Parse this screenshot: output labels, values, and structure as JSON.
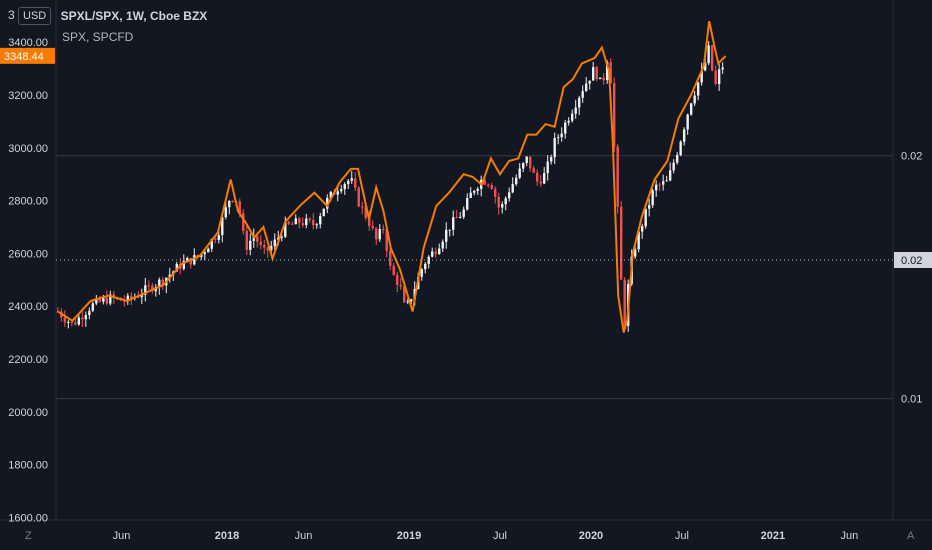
{
  "header": {
    "scale_prefix": "3",
    "currency_button": "USD",
    "symbol_title": "SPXL/SPX, 1W, Cboe BZX",
    "comparison_label": "SPX, SPCFD"
  },
  "corner": {
    "left": "Z",
    "right": "A"
  },
  "colors": {
    "background": "#131722",
    "grid": "#1f2330",
    "axis_text": "#d1d4dc",
    "up_candle": "#f0f0f0",
    "down_candle": "#ef5350",
    "compare_line": "#f57c00",
    "price_label_bg": "#f57c00"
  },
  "chart_data": {
    "type": "line",
    "title": "SPXL/SPX, 1W, Cboe BZX",
    "left_axis": {
      "ticks": [
        "1600.00",
        "1800.00",
        "2000.00",
        "2200.00",
        "2400.00",
        "2600.00",
        "2800.00",
        "3000.00",
        "3200.00",
        "3400.00"
      ],
      "ylim": [
        1590,
        3560
      ],
      "last_price_label": "3348.44"
    },
    "right_axis": {
      "ticks": [
        "0.01",
        "0.02"
      ],
      "last_value_label": "0.02"
    },
    "x_axis": {
      "ticks": [
        "Jun",
        "2018",
        "Jun",
        "2019",
        "Jul",
        "2020",
        "Jul",
        "2021",
        "Jun"
      ],
      "tick_dates": [
        2017.42,
        2018.0,
        2018.42,
        2019.0,
        2019.5,
        2020.0,
        2020.5,
        2021.0,
        2021.42
      ],
      "xlim": [
        2017.06,
        2021.66
      ]
    },
    "series": [
      {
        "style": "candlestick-trend",
        "x": [
          2017.07,
          2017.15,
          2017.25,
          2017.35,
          2017.45,
          2017.55,
          2017.65,
          2017.75,
          2017.85,
          2017.95,
          2018.02,
          2018.06,
          2018.1,
          2018.15,
          2018.2,
          2018.25,
          2018.32,
          2018.4,
          2018.48,
          2018.55,
          2018.62,
          2018.68,
          2018.72,
          2018.78,
          2018.82,
          2018.86,
          2018.9,
          2018.95,
          2018.98,
          2019.02,
          2019.08,
          2019.15,
          2019.22,
          2019.3,
          2019.35,
          2019.4,
          2019.45,
          2019.5,
          2019.55,
          2019.6,
          2019.65,
          2019.7,
          2019.75,
          2019.8,
          2019.85,
          2019.9,
          2019.95,
          2020.02,
          2020.06,
          2020.1,
          2020.12,
          2020.15,
          2020.18,
          2020.2,
          2020.23,
          2020.28,
          2020.35,
          2020.42,
          2020.48,
          2020.55,
          2020.62,
          2020.65,
          2020.68,
          2020.7,
          2020.74
        ],
        "values": [
          2380,
          2330,
          2400,
          2430,
          2420,
          2460,
          2500,
          2560,
          2590,
          2680,
          2820,
          2800,
          2620,
          2670,
          2600,
          2630,
          2700,
          2720,
          2710,
          2800,
          2860,
          2880,
          2800,
          2720,
          2650,
          2700,
          2530,
          2480,
          2380,
          2450,
          2560,
          2620,
          2700,
          2760,
          2840,
          2880,
          2870,
          2760,
          2840,
          2900,
          2960,
          2870,
          2900,
          3020,
          3080,
          3150,
          3220,
          3300,
          3230,
          3380,
          3100,
          2720,
          2300,
          2450,
          2600,
          2710,
          2850,
          2870,
          3000,
          3180,
          3300,
          3380,
          3220,
          3280,
          3330
        ]
      },
      {
        "name": "SPX, SPCFD",
        "style": "line",
        "x": [
          2017.07,
          2017.15,
          2017.25,
          2017.35,
          2017.45,
          2017.55,
          2017.65,
          2017.75,
          2017.85,
          2017.95,
          2018.02,
          2018.06,
          2018.1,
          2018.15,
          2018.2,
          2018.25,
          2018.32,
          2018.4,
          2018.48,
          2018.55,
          2018.62,
          2018.68,
          2018.72,
          2018.78,
          2018.82,
          2018.86,
          2018.9,
          2018.95,
          2018.98,
          2019.02,
          2019.08,
          2019.15,
          2019.22,
          2019.3,
          2019.35,
          2019.4,
          2019.45,
          2019.5,
          2019.55,
          2019.6,
          2019.65,
          2019.7,
          2019.75,
          2019.8,
          2019.85,
          2019.9,
          2019.95,
          2020.02,
          2020.06,
          2020.1,
          2020.12,
          2020.15,
          2020.18,
          2020.2,
          2020.23,
          2020.28,
          2020.35,
          2020.42,
          2020.48,
          2020.55,
          2020.62,
          2020.65,
          2020.68,
          2020.7,
          2020.74
        ],
        "values": [
          2380,
          2345,
          2420,
          2440,
          2420,
          2450,
          2480,
          2560,
          2590,
          2680,
          2880,
          2760,
          2720,
          2660,
          2700,
          2580,
          2720,
          2780,
          2830,
          2780,
          2870,
          2920,
          2920,
          2730,
          2850,
          2760,
          2620,
          2540,
          2470,
          2380,
          2620,
          2780,
          2830,
          2900,
          2890,
          2860,
          2960,
          2900,
          2950,
          2960,
          3050,
          3050,
          3090,
          3080,
          3230,
          3260,
          3320,
          3340,
          3380,
          3290,
          3020,
          2440,
          2300,
          2350,
          2600,
          2740,
          2880,
          2950,
          3110,
          3200,
          3310,
          3480,
          3380,
          3320,
          3348
        ]
      }
    ]
  }
}
